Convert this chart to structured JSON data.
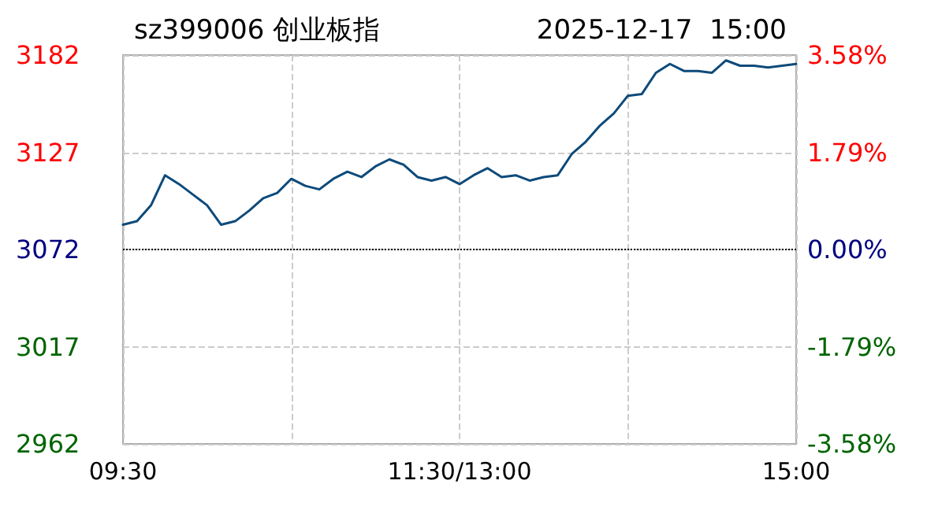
{
  "chart_data": {
    "type": "line",
    "title": "sz399006 创业板指",
    "subtitle": "2025-12-17  15:00",
    "categories": [
      "09:30",
      null,
      null,
      null,
      null,
      null,
      null,
      null,
      null,
      null,
      null,
      null,
      null,
      null,
      null,
      null,
      null,
      null,
      null,
      null,
      null,
      null,
      null,
      null,
      "11:30/13:00",
      null,
      null,
      null,
      null,
      null,
      null,
      null,
      null,
      null,
      null,
      null,
      null,
      null,
      null,
      null,
      null,
      null,
      null,
      null,
      null,
      null,
      null,
      null,
      "15:00"
    ],
    "series": [
      {
        "color": "#0d4a7a",
        "values": [
          3086,
          3088,
          3097,
          3114,
          3109,
          3103,
          3097,
          3086,
          3088,
          3094,
          3101,
          3104,
          3112,
          3108,
          3106,
          3112,
          3116,
          3113,
          3119,
          3123,
          3120,
          3113,
          3111,
          3113,
          3109,
          3114,
          3118,
          3113,
          3114,
          3111,
          3113,
          3114,
          3126,
          3133,
          3142,
          3149,
          3159,
          3160,
          3172,
          3177,
          3173,
          3173,
          3172,
          3179,
          3176,
          3176,
          3175,
          3176,
          3177
        ]
      }
    ],
    "ylim": [
      2962,
      3182
    ],
    "yticks": [
      2962,
      3017,
      3072,
      3127,
      3182
    ],
    "y2lim": [
      -3.58,
      3.58
    ],
    "y2ticks": [
      {
        "value": -3.58,
        "label": "-3.58%"
      },
      {
        "value": -1.79,
        "label": "-1.79%"
      },
      {
        "value": 0,
        "label": "0.00%"
      },
      {
        "value": 1.79,
        "label": "1.79%"
      },
      {
        "value": 3.58,
        "label": "3.58%"
      }
    ],
    "ref_lines": [
      {
        "axis": "y",
        "value": 3072,
        "color": "#000000",
        "line_style": "dotted"
      }
    ],
    "grid": true,
    "marker": "none",
    "line_style": "solid"
  }
}
